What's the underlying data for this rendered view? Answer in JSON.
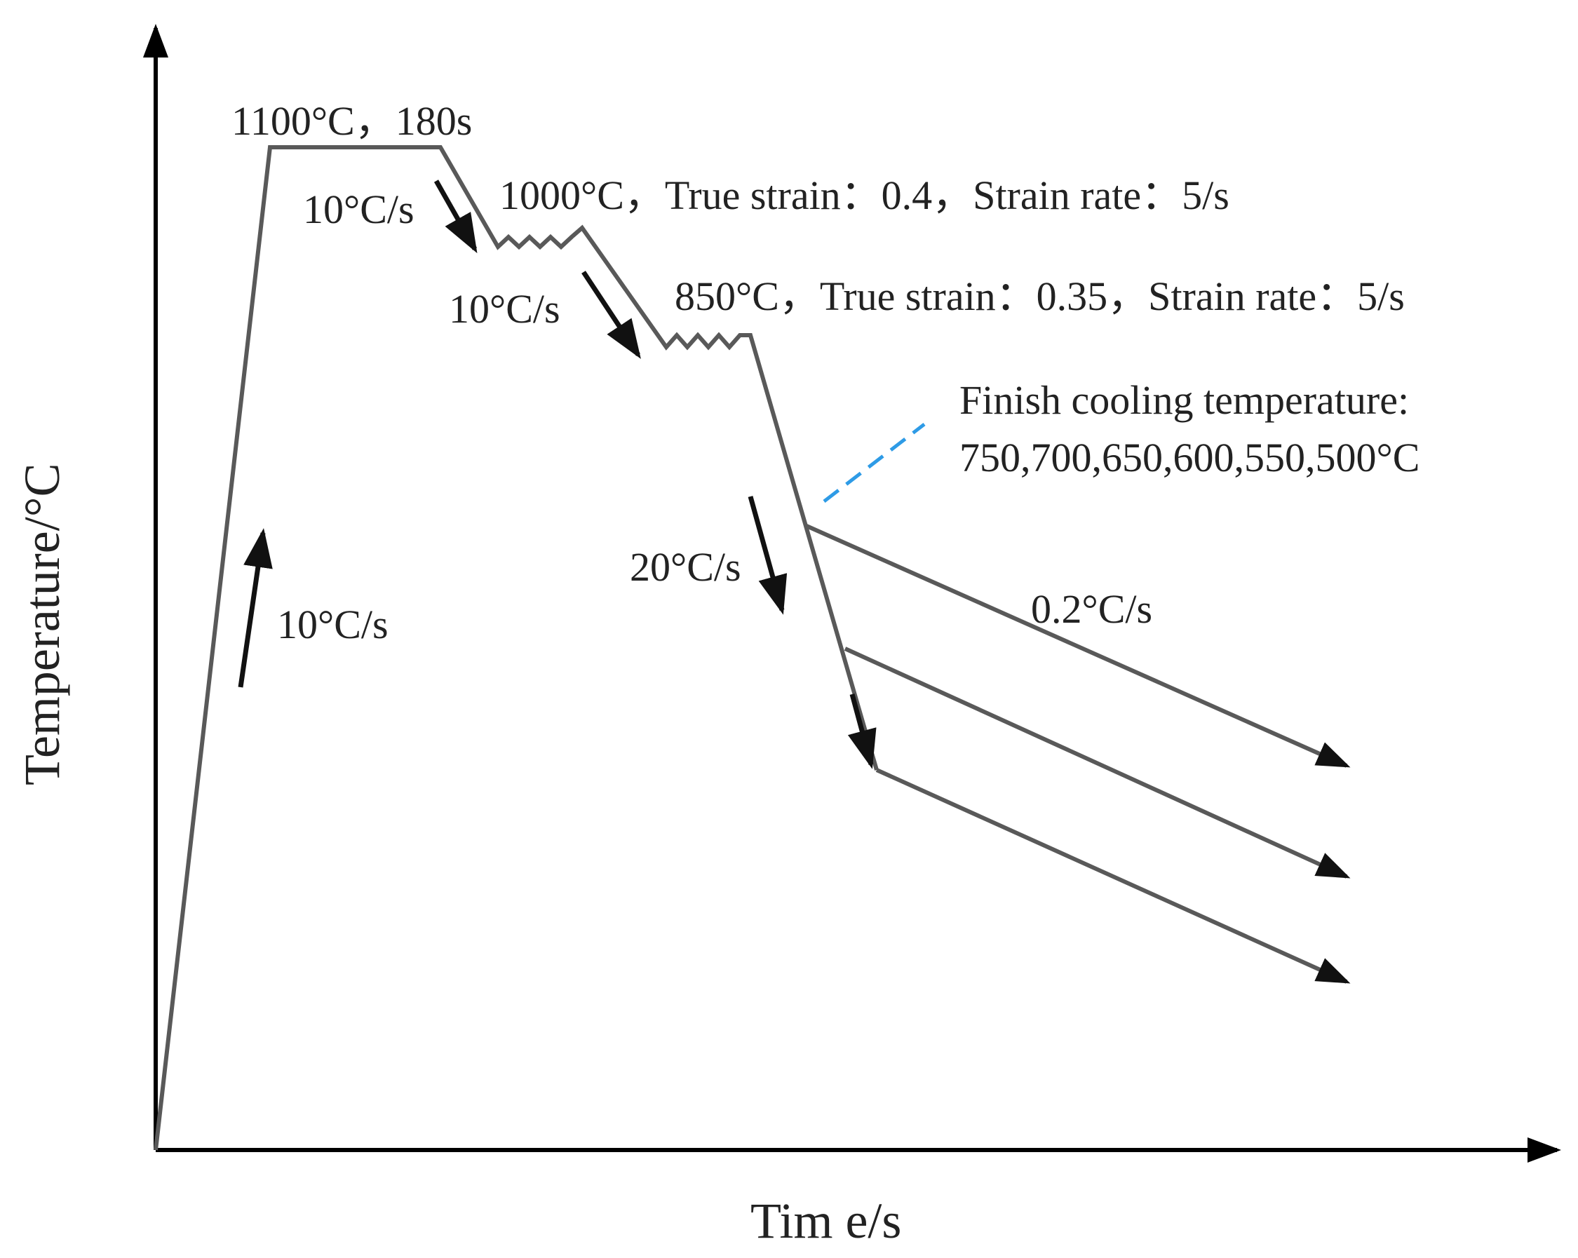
{
  "axes": {
    "x_label": "Tim e/s",
    "y_label": "Temperature/°C"
  },
  "annotations": {
    "austenitize": "1100°C，180s",
    "heat_rate": "10°C/s",
    "cool_rate_1": "10°C/s",
    "deform_1": "1000°C，True strain：0.4，Strain rate：5/s",
    "cool_rate_2": "10°C/s",
    "deform_2": "850°C，True strain：0.35，Strain rate：5/s",
    "finish_cooling_title": "Finish  cooling  temperature:",
    "finish_cooling_values": "750,700,650,600,550,500°C",
    "fast_cool_rate": "20°C/s",
    "slow_cool_rate": "0.2°C/s"
  },
  "colors": {
    "process_line": "#595959",
    "arrows": "#111111",
    "leader_line": "#2e9be6"
  }
}
